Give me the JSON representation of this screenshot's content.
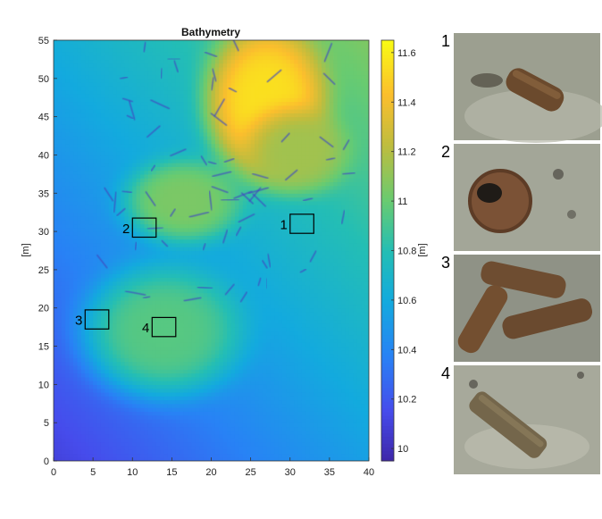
{
  "chart_data": {
    "type": "heatmap",
    "title": "Bathymetry",
    "xlabel": "",
    "ylabel": "[m]",
    "colorbar_label": "[m]",
    "xlim": [
      0,
      40
    ],
    "ylim": [
      0,
      55
    ],
    "xticks": [
      0,
      5,
      10,
      15,
      20,
      25,
      30,
      35,
      40
    ],
    "yticks": [
      0,
      5,
      10,
      15,
      20,
      25,
      30,
      35,
      40,
      45,
      50,
      55
    ],
    "colorbar_range": [
      9.95,
      11.65
    ],
    "colorbar_ticks": [
      10,
      10.2,
      10.4,
      10.6,
      10.8,
      11,
      11.2,
      11.4,
      11.6
    ],
    "colormap": "parula",
    "grid": false,
    "base_depth_model": {
      "at_origin": 10.1,
      "x_slope": 0.011,
      "y_slope": 0.0095
    },
    "mounds": [
      {
        "x": 27,
        "y": 47,
        "rx": 7.5,
        "ry": 10,
        "peak": 11.55
      },
      {
        "x": 31,
        "y": 40.5,
        "rx": 6.5,
        "ry": 5.5,
        "peak": 11.15
      },
      {
        "x": 16.5,
        "y": 34,
        "rx": 7.5,
        "ry": 5.5,
        "peak": 11.05
      },
      {
        "x": 14,
        "y": 17,
        "rx": 10,
        "ry": 8.5,
        "peak": 10.95
      }
    ],
    "annotations": [
      {
        "label": "1",
        "x": 31.5,
        "y": 31
      },
      {
        "label": "2",
        "x": 11.5,
        "y": 30.5
      },
      {
        "label": "3",
        "x": 5.5,
        "y": 18.5
      },
      {
        "label": "4",
        "x": 14,
        "y": 17.5
      }
    ]
  },
  "photos": [
    {
      "label": "1",
      "subject": "single corroded cylinder"
    },
    {
      "label": "2",
      "subject": "round corroded object"
    },
    {
      "label": "3",
      "subject": "three corroded cylinders"
    },
    {
      "label": "4",
      "subject": "single cylinder in sand"
    }
  ]
}
